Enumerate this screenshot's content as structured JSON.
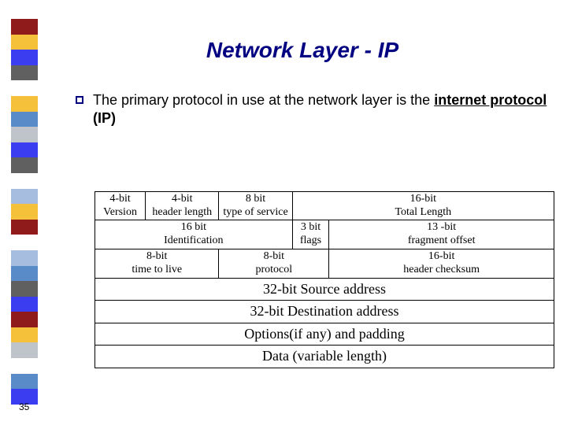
{
  "sidebar_colors": [
    "#8f1b1b",
    "#f6c13a",
    "#3a3ef0",
    "#606060",
    "#ffffff",
    "#f6c13a",
    "#5a8bc9",
    "#bfc3ca",
    "#3a3ef0",
    "#606060",
    "#ffffff",
    "#a7bde0",
    "#f6c13a",
    "#8f1b1b",
    "#ffffff",
    "#a7bde0",
    "#5a8bc9",
    "#606060",
    "#3a3ef0",
    "#8f1b1b",
    "#f6c13a",
    "#bfc3ca",
    "#ffffff",
    "#5a8bc9",
    "#3a3ef0"
  ],
  "title": "Network Layer - IP",
  "bullet": {
    "pre": "The primary  protocol in use  at the network layer is the ",
    "emph": "internet protocol",
    "post": " (IP)"
  },
  "table": {
    "colwidths_pct": [
      11,
      16,
      16,
      8,
      49
    ],
    "row1": {
      "c1": "4-bit\nVersion",
      "c2": "4-bit\nheader length",
      "c3": "8 bit\ntype of service",
      "c4": "16-bit\nTotal Length"
    },
    "row2": {
      "c1": "16 bit\nIdentification",
      "c2": "3 bit\nflags",
      "c3": "13 -bit\nfragment offset"
    },
    "row3": {
      "c1": "8-bit\ntime to live",
      "c2": "8-bit\nprotocol",
      "c3": "16-bit\nheader checksum"
    },
    "row4": "32-bit Source address",
    "row5": "32-bit Destination address",
    "row6": "Options(if  any) and padding",
    "row7": "Data (variable length)"
  },
  "page_number": "35"
}
